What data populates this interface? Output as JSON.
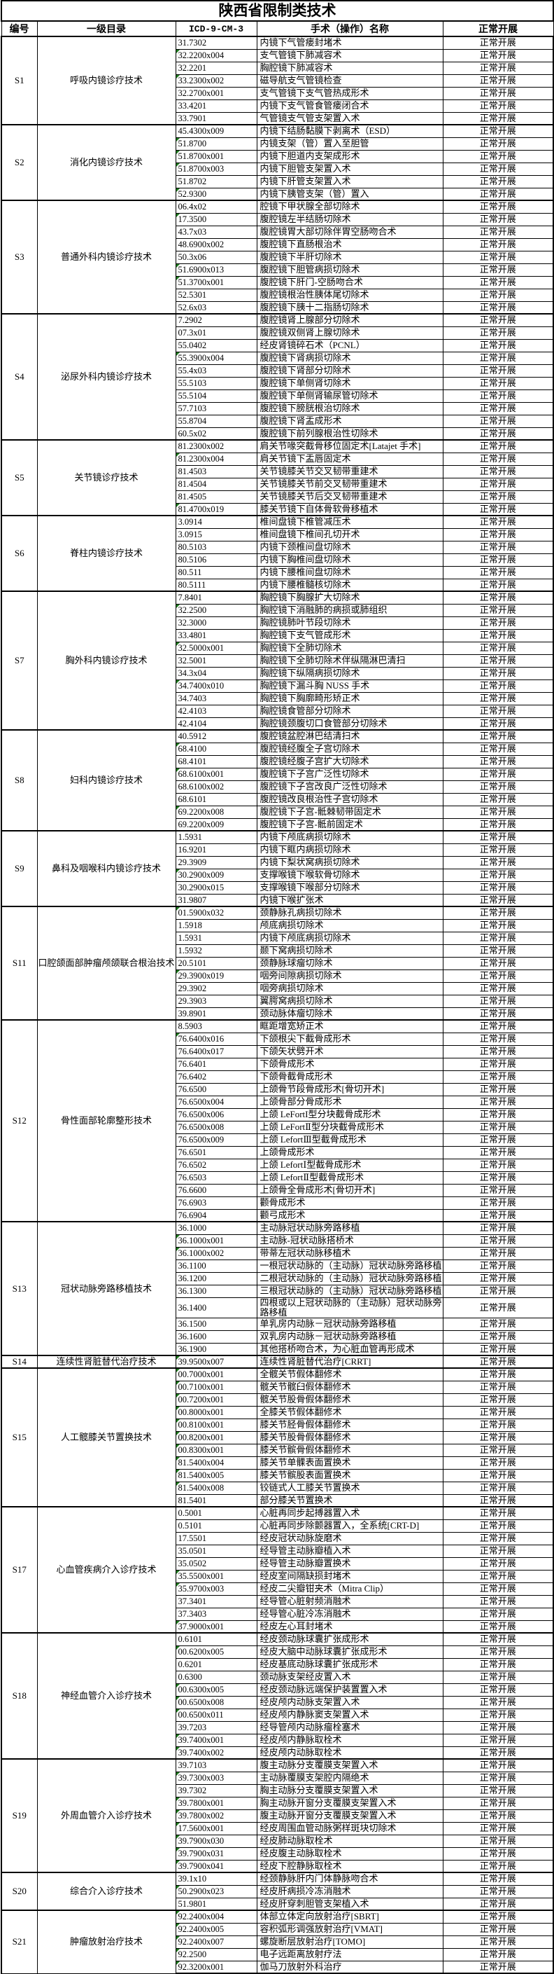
{
  "title": "陕西省限制类技术",
  "columns": [
    "编号",
    "一级目录",
    "ICD-9-CM-3",
    "手术（操作）名称",
    "正常开展"
  ],
  "status_value": "正常开展",
  "flag_icon_color": "#1e7a1e",
  "sections": [
    {
      "id": "S1",
      "category": "呼吸内镜诊疗技术",
      "rows": [
        [
          "31.7302",
          "内镜下气管瘘封堵术",
          0
        ],
        [
          "32.2200x004",
          "支气管镜下肺减容术",
          1
        ],
        [
          "32.2201",
          "胸腔镜下肺减容术",
          0
        ],
        [
          "33.2300x002",
          "磁导航支气管镜检查",
          1
        ],
        [
          "32.2700x001",
          "支气管镜下支气管热成形术",
          0
        ],
        [
          "33.4201",
          "内镜下支气管食管瘘闭合术",
          0
        ],
        [
          "33.7901",
          "气管镜支气管支架置入术",
          0
        ]
      ]
    },
    {
      "id": "S2",
      "category": "消化内镜诊疗技术",
      "rows": [
        [
          "45.4300x009",
          "内镜下结肠黏膜下剥离术（ESD）",
          0
        ],
        [
          "51.8700",
          "内镜支架（管）置入至胆管",
          1
        ],
        [
          "51.8700x001",
          "内镜下胆道内支架成形术",
          1
        ],
        [
          "51.8700x003",
          "内镜下胆管支架置入术",
          1
        ],
        [
          "51.8702",
          "内镜下肝管支架置入术",
          0
        ],
        [
          "52.9300",
          "内镜下胰管支架（管）置入",
          1
        ]
      ]
    },
    {
      "id": "S3",
      "category": "普通外科内镜诊疗技术",
      "rows": [
        [
          "06.4x02",
          "腔镜下甲状腺全部切除术",
          0
        ],
        [
          "17.3500",
          "腹腔镜左半结肠切除术",
          1
        ],
        [
          "43.7x03",
          "腹腔镜胃大部切除伴胃空肠吻合术",
          0
        ],
        [
          "48.6900x002",
          "腹腔镜下直肠根治术",
          0
        ],
        [
          "50.3x06",
          "腹腔镜下半肝切除术",
          0
        ],
        [
          "51.6900x013",
          "腹腔镜下胆管病损切除术",
          1
        ],
        [
          "51.3700x001",
          "腹腔镜下肝门-空肠吻合术",
          1
        ],
        [
          "52.5301",
          "腹腔镜根治性胰体尾切除术",
          0
        ],
        [
          "52.6x03",
          "腹腔镜下胰十二指肠切除术",
          0
        ]
      ]
    },
    {
      "id": "S4",
      "category": "泌尿外科内镜诊疗技术",
      "rows": [
        [
          "7.2902",
          "腹腔镜肾上腺部分切除术",
          0
        ],
        [
          "07.3x01",
          "腹腔镜双侧肾上腺切除术",
          0
        ],
        [
          "55.0402",
          "经皮肾镜碎石术（PCNL）",
          0
        ],
        [
          "55.3900x004",
          "腹腔镜下肾病损切除术",
          1
        ],
        [
          "55.4x03",
          "腹腔镜下肾部分切除术",
          0
        ],
        [
          "55.5103",
          "腹腔镜下单侧肾切除术",
          0
        ],
        [
          "55.5104",
          "腹腔镜下单侧肾输尿管切除术",
          0
        ],
        [
          "57.7103",
          "腹腔镜下膀胱根治切除术",
          0
        ],
        [
          "55.8704",
          "腹腔镜下肾盂成形术",
          0
        ],
        [
          "60.5x02",
          "腹腔镜下前列腺根治性切除术",
          0
        ]
      ]
    },
    {
      "id": "S5",
      "category": "关节镜诊疗技术",
      "rows": [
        [
          "81.2300x002",
          "肩关节喙突截骨移位固定术[Latajet 手术]",
          0
        ],
        [
          "81.2300x004",
          "肩关节镜下盂唇固定术",
          1
        ],
        [
          "81.4503",
          "关节镜膝关节交叉韧带重建术",
          0
        ],
        [
          "81.4504",
          "关节镜膝关节前交叉韧带重建术",
          0
        ],
        [
          "81.4505",
          "关节镜膝关节后交叉韧带重建术",
          0
        ],
        [
          "81.4700x019",
          "膝关节镜下自体骨软骨移植术",
          1
        ]
      ]
    },
    {
      "id": "S6",
      "category": "脊柱内镜诊疗技术",
      "rows": [
        [
          "3.0914",
          "椎间盘镜下椎管减压术",
          0
        ],
        [
          "3.0915",
          "椎间盘镜下椎间孔切开术",
          0
        ],
        [
          "80.5103",
          "内镜下颈椎间盘切除术",
          0
        ],
        [
          "80.5106",
          "内镜下胸椎间盘切除术",
          0
        ],
        [
          "80.511",
          "内镜下腰椎间盘切除术",
          0
        ],
        [
          "80.5111",
          "内镜下腰椎髓核切除术",
          0
        ]
      ]
    },
    {
      "id": "S7",
      "category": "胸外科内镜诊疗技术",
      "rows": [
        [
          "7.8401",
          "胸腔镜下胸腺扩大切除术",
          0
        ],
        [
          "32.2500",
          "胸腔镜下消融肺的病损或肺组织",
          1
        ],
        [
          "32.3000",
          "胸腔镜肺叶节段切除术",
          0
        ],
        [
          "33.4801",
          "胸腔镜下支气管成形术",
          0
        ],
        [
          "32.5000x001",
          "胸腔镜下全肺切除术",
          1
        ],
        [
          "32.5001",
          "胸腔镜下全肺切除术伴纵隔淋巴清扫",
          0
        ],
        [
          "34.3x04",
          "胸腔镜下纵隔病损切除术",
          0
        ],
        [
          "34.7400x010",
          "胸腔镜下漏斗胸 NUSS 手术",
          1
        ],
        [
          "34.7403",
          "胸腔镜下胸廓畸形矫正术",
          0
        ],
        [
          "42.4103",
          "胸腔镜食管部分切除术",
          0
        ],
        [
          "42.4104",
          "胸腔镜颈腹切口食管部分切除术",
          0
        ]
      ]
    },
    {
      "id": "S8",
      "category": "妇科内镜诊疗技术",
      "rows": [
        [
          "40.5912",
          "腹腔镜盆腔淋巴结清扫术",
          0
        ],
        [
          "68.4100",
          "腹腔镜经腹全子宫切除术",
          1
        ],
        [
          "68.4101",
          "腹腔镜经腹子宫扩大切除术",
          0
        ],
        [
          "68.6100x001",
          "腹腔镜下子宫广泛性切除术",
          1
        ],
        [
          "68.6100x002",
          "腹腔镜下子宫改良广泛性切除术",
          0
        ],
        [
          "68.6101",
          "腹腔镜改良根治性子宫切除术",
          0
        ],
        [
          "69.2200x008",
          "腹腔镜下子宫-骶棘韧带固定术",
          1
        ],
        [
          "69.2200x009",
          "腹腔镜下子宫-骶前固定术",
          0
        ]
      ]
    },
    {
      "id": "S9",
      "category": "鼻科及咽喉科内镜诊疗技术",
      "rows": [
        [
          "1.5931",
          "内镜下颅底病损切除术",
          0
        ],
        [
          "16.9201",
          "内镜下眶内病损切除术",
          0
        ],
        [
          "29.3909",
          "内镜下梨状窝病损切除术",
          0
        ],
        [
          "30.2900x009",
          "支撑喉镜下喉软骨切除术",
          1
        ],
        [
          "30.2900x015",
          "支撑喉镜下喉部分切除术",
          0
        ],
        [
          "31.9807",
          "内镜下喉扩张术",
          0
        ]
      ]
    },
    {
      "id": "S11",
      "category": "口腔颌面部肿瘤颅颌联合根治技术",
      "rows": [
        [
          "01.5900x032",
          "颈静脉孔病损切除术",
          1
        ],
        [
          "1.5918",
          "颅底病损切除术",
          0
        ],
        [
          "1.5931",
          "内镜下颅底病损切除术",
          0
        ],
        [
          "1.5932",
          "颞下窝病损切除术",
          0
        ],
        [
          "20.5101",
          "颈静脉球瘤切除术",
          0
        ],
        [
          "29.3900x019",
          "咽旁间隙病损切除术",
          1
        ],
        [
          "29.3902",
          "咽旁病损切除术",
          0
        ],
        [
          "29.3903",
          "翼腭窝病损切除术",
          0
        ],
        [
          "39.8901",
          "颈动脉体瘤切除术",
          0
        ]
      ]
    },
    {
      "id": "S12",
      "category": "骨性面部轮廓整形技术",
      "rows": [
        [
          "8.5903",
          "眶距增宽矫正术",
          0
        ],
        [
          "76.6400x016",
          "下颌根尖下截骨成形术",
          1
        ],
        [
          "76.6400x017",
          "下颌矢状劈开术",
          0
        ],
        [
          "76.6401",
          "下颌骨成形术",
          0
        ],
        [
          "76.6402",
          "下颌骨截骨成形术",
          0
        ],
        [
          "76.6500",
          "上颌骨节段骨成形术[骨切开术]",
          0
        ],
        [
          "76.6500x004",
          "上颌骨部分骨成形术",
          0
        ],
        [
          "76.6500x006",
          "上颌 LeFortI型分块截骨成形术",
          0
        ],
        [
          "76.6500x008",
          "上颌 LeFortⅡ型分块截骨成形术",
          0
        ],
        [
          "76.6500x009",
          "上颌 LefortⅢ型截骨成形术",
          0
        ],
        [
          "76.6501",
          "上颌骨成形术",
          0
        ],
        [
          "76.6502",
          "上颌 LefortⅠ型截骨成形术",
          0
        ],
        [
          "76.6503",
          "上颌 LefortⅡ型截骨成形术",
          0
        ],
        [
          "76.6600",
          "上颌骨全骨成形术[骨切开术]",
          0
        ],
        [
          "76.6903",
          "颧骨成形术",
          0
        ],
        [
          "76.6904",
          "颧弓成形术",
          0
        ]
      ]
    },
    {
      "id": "S13",
      "category": "冠状动脉旁路移植技术",
      "rows": [
        [
          "36.1000",
          "主动脉冠状动脉旁路移植",
          0
        ],
        [
          "36.1000x001",
          "主动脉-冠状动脉搭桥术",
          1
        ],
        [
          "36.1000x002",
          "带蒂左冠状动脉移植术",
          1
        ],
        [
          "36.1100",
          "一根冠状动脉的（主动脉）冠状动脉旁路移植",
          0
        ],
        [
          "36.1200",
          "二根冠状动脉的（主动脉）冠状动脉旁路移植",
          0
        ],
        [
          "36.1300",
          "三根冠状动脉的（主动脉）冠状动脉旁路移植",
          0
        ],
        [
          "36.1400",
          "四根或以上冠状动脉的（主动脉）冠状动脉旁路移植",
          0
        ],
        [
          "36.1500",
          "单乳房内动脉－冠状动脉旁路移植",
          0
        ],
        [
          "36.1600",
          "双乳房内动脉－冠状动脉旁路移植",
          0
        ],
        [
          "36.1900",
          "其他搭桥吻合术，为心脏血管再形成术",
          0
        ]
      ]
    },
    {
      "id": "S14",
      "category": "连续性肾脏替代治疗技术",
      "rows": [
        [
          "39.9500x007",
          "连续性肾脏替代治疗[CRRT]",
          1
        ]
      ]
    },
    {
      "id": "S15",
      "category": "人工髋膝关节置换技术",
      "rows": [
        [
          "00.7000x001",
          "全髋关节假体翻修术",
          1
        ],
        [
          "00.7100x001",
          "髋关节髋臼假体翻修术",
          1
        ],
        [
          "00.7200x001",
          "髋关节股骨假体翻修术",
          1
        ],
        [
          "00.8000x001",
          "全膝关节假体翻修术",
          1
        ],
        [
          "00.8100x001",
          "膝关节胫骨假体翻修术",
          1
        ],
        [
          "00.8200x001",
          "膝关节股骨假体翻修术",
          1
        ],
        [
          "00.8300x001",
          "膝关节髌骨假体翻修术",
          1
        ],
        [
          "81.5400x004",
          "膝关节单髁表面置换术",
          1
        ],
        [
          "81.5400x005",
          "膝关节髌股表面置换术",
          1
        ],
        [
          "81.5400x008",
          "铰链式人工膝关节置换术",
          1
        ],
        [
          "81.5401",
          "部分膝关节置换术",
          0
        ]
      ]
    },
    {
      "id": "S17",
      "category": "心血管疾病介入诊疗技术",
      "rows": [
        [
          "0.5001",
          "心脏再同步起搏器置入术",
          0
        ],
        [
          "0.5101",
          "心脏再同步除颤器置入，全系统[CRT-D]",
          0
        ],
        [
          "17.5501",
          "经皮冠状动脉旋磨术",
          0
        ],
        [
          "35.0501",
          "经导管主动脉瓣植入术",
          0
        ],
        [
          "35.0502",
          "经导管主动脉瓣置换术",
          0
        ],
        [
          "35.5500x001",
          "经皮室间隔缺损封堵术",
          1
        ],
        [
          "35.9700x003",
          "经皮二尖瓣钳夹术（Mitra Clip）",
          1
        ],
        [
          "37.3401",
          "经导管心脏射频消融术",
          0
        ],
        [
          "37.3403",
          "经导管心脏冷冻消融术",
          0
        ],
        [
          "37.9000x001",
          "经皮左心耳封堵术",
          1
        ]
      ]
    },
    {
      "id": "S18",
      "category": "神经血管介入诊疗技术",
      "rows": [
        [
          "0.6101",
          "经皮颈动脉球囊扩张成形术",
          0
        ],
        [
          "00.6200x005",
          "经皮大脑中动脉球囊扩张成形术",
          1
        ],
        [
          "0.6201",
          "经皮基底动脉球囊扩张成形术",
          0
        ],
        [
          "0.6300",
          "颈动脉支架经皮置入术",
          0
        ],
        [
          "00.6300x005",
          "经皮颈动脉远端保护装置置入术",
          1
        ],
        [
          "00.6500x008",
          "经皮颅内动脉支架置入术",
          1
        ],
        [
          "00.6500x011",
          "经皮颅内静脉窦支架置入术",
          1
        ],
        [
          "39.7203",
          "经导管颅内动脉瘤栓塞术",
          0
        ],
        [
          "39.7400x001",
          "经皮颅内静脉取栓术",
          1
        ],
        [
          "39.7400x002",
          "经皮颅内动脉取栓术",
          1
        ]
      ]
    },
    {
      "id": "S19",
      "category": "外周血管介入诊疗技术",
      "rows": [
        [
          "39.7103",
          "腹主动脉分支覆膜支架置入术",
          0
        ],
        [
          "39.7300x003",
          "主动脉覆膜支架腔内隔绝术",
          1
        ],
        [
          "39.7302",
          "胸主动脉分支覆膜支架置入术",
          0
        ],
        [
          "39.7800x001",
          "胸主动脉开窗分支覆膜支架置入术",
          1
        ],
        [
          "39.7800x002",
          "腹主动脉开窗分支覆膜支架置入术",
          1
        ],
        [
          "17.5600x001",
          "经皮周围血管动脉粥样斑块切除术",
          1
        ],
        [
          "39.7900x030",
          "经皮肺动脉取栓术",
          1
        ],
        [
          "39.7900x031",
          "经皮腹主动脉取栓术",
          1
        ],
        [
          "39.7900x041",
          "经皮下腔静脉取栓术",
          1
        ]
      ]
    },
    {
      "id": "S20",
      "category": "综合介入诊疗技术",
      "rows": [
        [
          "39.1x10",
          "经颈静脉肝内门体静脉吻合术",
          0
        ],
        [
          "50.2900x023",
          "经皮肝病损冷冻消融术",
          1
        ],
        [
          "51.9801",
          "经皮肝穿刺胆管支架植入术",
          0
        ]
      ]
    },
    {
      "id": "S21",
      "category": "肿瘤放射治疗技术",
      "rows": [
        [
          "92.2400x004",
          "体部立体定向放射治疗[SBRT]",
          1
        ],
        [
          "92.2400x005",
          "容积弧形调强放射治疗[VMAT]",
          1
        ],
        [
          "92.2400x007",
          "螺旋断层放射治疗[TOMO]",
          1
        ],
        [
          "92.2500",
          "电子远距离放射疗法",
          1
        ],
        [
          "92.3200x001",
          "伽马刀放射外科治疗",
          1
        ]
      ]
    }
  ]
}
